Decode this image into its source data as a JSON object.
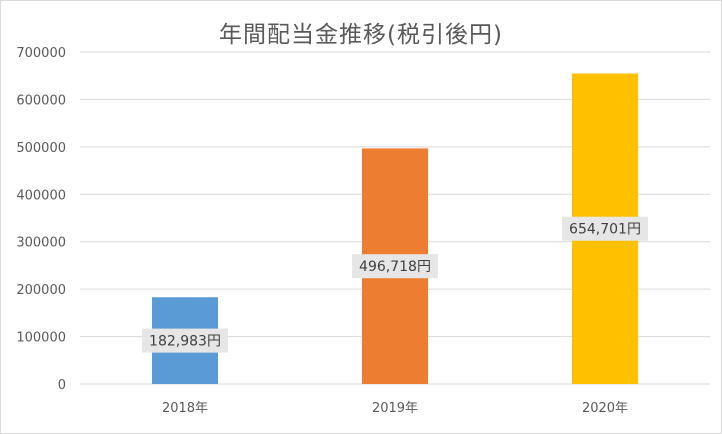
{
  "chart_data": {
    "type": "bar",
    "title": "年間配当金推移(税引後円)",
    "categories": [
      "2018年",
      "2019年",
      "2020年"
    ],
    "values": [
      182983,
      496718,
      654701
    ],
    "data_labels": [
      "182,983円",
      "496,718円",
      "654,701円"
    ],
    "colors": [
      "#5b9bd5",
      "#ed7d31",
      "#ffc000"
    ],
    "ylim": [
      0,
      700000
    ],
    "yticks": [
      0,
      100000,
      200000,
      300000,
      400000,
      500000,
      600000,
      700000
    ],
    "ytick_labels": [
      "0",
      "100000",
      "200000",
      "300000",
      "400000",
      "500000",
      "600000",
      "700000"
    ],
    "grid": true,
    "legend": "none",
    "xlabel": "",
    "ylabel": ""
  }
}
